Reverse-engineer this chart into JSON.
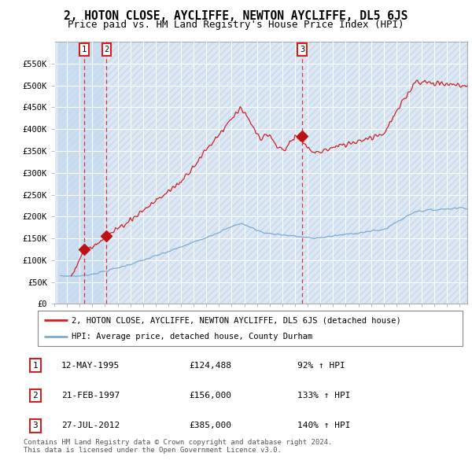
{
  "title": "2, HOTON CLOSE, AYCLIFFE, NEWTON AYCLIFFE, DL5 6JS",
  "subtitle": "Price paid vs. HM Land Registry's House Price Index (HPI)",
  "ylim": [
    0,
    600000
  ],
  "yticks": [
    0,
    50000,
    100000,
    150000,
    200000,
    250000,
    300000,
    350000,
    400000,
    450000,
    500000,
    550000
  ],
  "xlim_start": 1993.3,
  "xlim_end": 2025.6,
  "plot_bg": "#dce8f5",
  "grid_color": "#ffffff",
  "red_line_color": "#cc2222",
  "blue_line_color": "#7aadd4",
  "sale_marker_color": "#bb1111",
  "dashed_line_color": "#dd3333",
  "shade_color": "#c5d9ee",
  "legend_line1": "2, HOTON CLOSE, AYCLIFFE, NEWTON AYCLIFFE, DL5 6JS (detached house)",
  "legend_line2": "HPI: Average price, detached house, County Durham",
  "sale1_date": 1995.36,
  "sale1_price": 124488,
  "sale2_date": 1997.12,
  "sale2_price": 156000,
  "sale3_date": 2012.56,
  "sale3_price": 385000,
  "sale1_text": "12-MAY-1995",
  "sale1_amount": "£124,488",
  "sale1_hpi": "92% ↑ HPI",
  "sale2_text": "21-FEB-1997",
  "sale2_amount": "£156,000",
  "sale2_hpi": "133% ↑ HPI",
  "sale3_text": "27-JUL-2012",
  "sale3_amount": "£385,000",
  "sale3_hpi": "140% ↑ HPI",
  "footer": "Contains HM Land Registry data © Crown copyright and database right 2024.\nThis data is licensed under the Open Government Licence v3.0."
}
